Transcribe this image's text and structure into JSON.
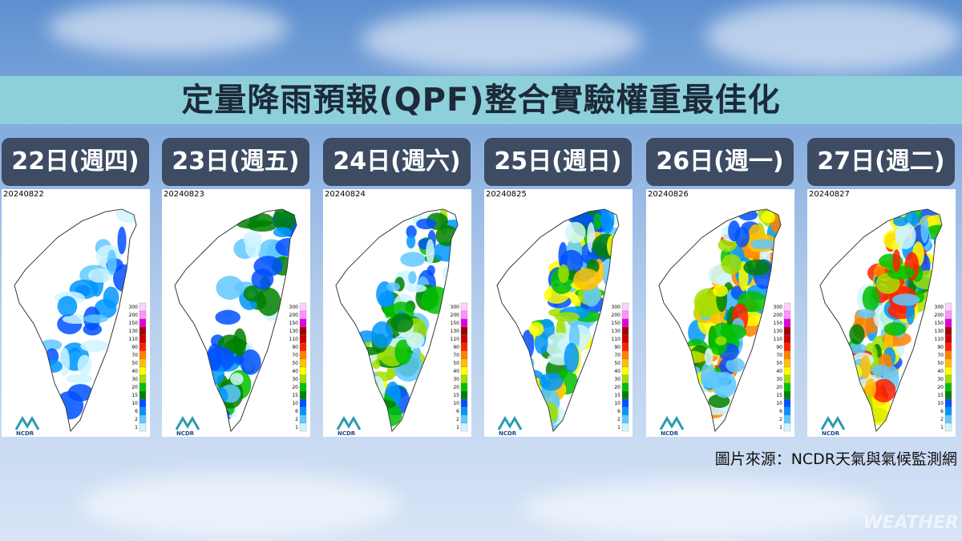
{
  "title": "定量降雨預報(QPF)整合實驗權重最佳化",
  "panels": [
    {
      "day": "22日(週四)",
      "date": "20240822"
    },
    {
      "day": "23日(週五)",
      "date": "20240823"
    },
    {
      "day": "24日(週六)",
      "date": "20240824"
    },
    {
      "day": "25日(週日)",
      "date": "20240825"
    },
    {
      "day": "26日(週一)",
      "date": "20240826"
    },
    {
      "day": "27日(週二)",
      "date": "20240827"
    }
  ],
  "legend": {
    "levels": [
      300,
      200,
      150,
      130,
      110,
      90,
      70,
      50,
      40,
      30,
      20,
      15,
      10,
      6,
      2,
      1
    ],
    "colors": [
      "#ffd0ff",
      "#ff90ff",
      "#e000e0",
      "#a00000",
      "#c80000",
      "#ff2000",
      "#ff8000",
      "#ffc000",
      "#ffff00",
      "#a0e000",
      "#00c000",
      "#008000",
      "#0050ff",
      "#0096ff",
      "#60c8ff",
      "#d0f4ff"
    ]
  },
  "logo": "NCDR",
  "source": "圖片來源：NCDR天氣與氣候監測網",
  "watermark": "WEATHER"
}
